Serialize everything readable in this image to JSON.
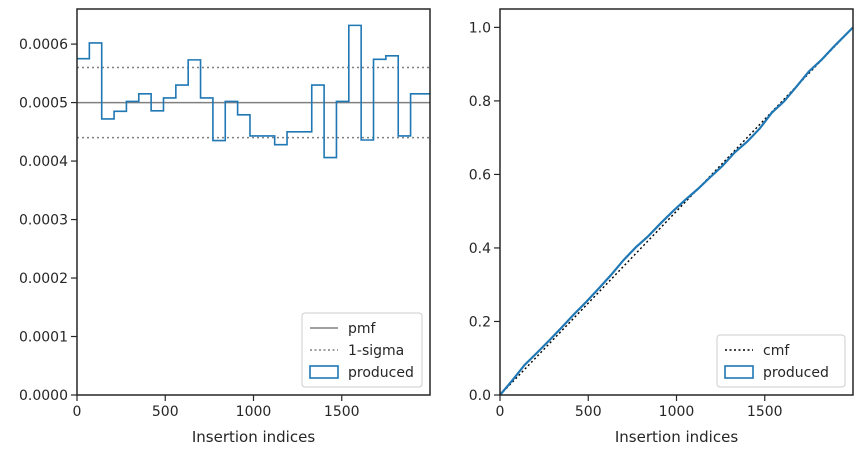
{
  "colors": {
    "produced": "#1f77b4",
    "reference": "#808080",
    "cmf": "#000000",
    "axes": "#262626"
  },
  "chart_data": [
    {
      "type": "step",
      "xlabel": "Insertion indices",
      "ylabel": "",
      "xlim": [
        0,
        2000
      ],
      "ylim": [
        0,
        0.00066
      ],
      "xticks": [
        0,
        500,
        1000,
        1500
      ],
      "xtick_labels": [
        "0",
        "500",
        "1000",
        "1500"
      ],
      "yticks": [
        0,
        0.0001,
        0.0002,
        0.0003,
        0.0004,
        0.0005,
        0.0006
      ],
      "ytick_labels": [
        "0.0000",
        "0.0001",
        "0.0002",
        "0.0003",
        "0.0004",
        "0.0005",
        "0.0006"
      ],
      "pmf": 0.0005,
      "sigma_band": [
        0.00044,
        0.00056
      ],
      "bin_edges": [
        0,
        70,
        140,
        210,
        280,
        350,
        420,
        490,
        560,
        630,
        700,
        770,
        840,
        910,
        980,
        1050,
        1120,
        1190,
        1260,
        1330,
        1400,
        1470,
        1540,
        1610,
        1680,
        1750,
        1820,
        1890,
        2000
      ],
      "produced": [
        0.000575,
        0.000602,
        0.000472,
        0.000485,
        0.000502,
        0.000515,
        0.000486,
        0.000508,
        0.00053,
        0.000573,
        0.000508,
        0.000435,
        0.000502,
        0.000479,
        0.000443,
        0.000443,
        0.000428,
        0.00045,
        0.00045,
        0.00053,
        0.000406,
        0.000502,
        0.000632,
        0.000436,
        0.000574,
        0.00058,
        0.000443,
        0.000515
      ],
      "legend": {
        "location": "lower right",
        "entries": [
          {
            "label": "pmf",
            "style": "solid-line"
          },
          {
            "label": "1-sigma",
            "style": "dotted-line"
          },
          {
            "label": "produced",
            "style": "box"
          }
        ]
      }
    },
    {
      "type": "line",
      "xlabel": "Insertion indices",
      "ylabel": "",
      "xlim": [
        0,
        2000
      ],
      "ylim": [
        0,
        1.05
      ],
      "xticks": [
        0,
        500,
        1000,
        1500
      ],
      "xtick_labels": [
        "0",
        "500",
        "1000",
        "1500"
      ],
      "yticks": [
        0,
        0.2,
        0.4,
        0.6,
        0.8,
        1.0
      ],
      "ytick_labels": [
        "0.0",
        "0.2",
        "0.4",
        "0.6",
        "0.8",
        "1.0"
      ],
      "cmf": {
        "x": [
          0,
          2000
        ],
        "y": [
          0,
          1.0
        ]
      },
      "produced": {
        "x": [
          0,
          70,
          140,
          210,
          280,
          350,
          420,
          490,
          560,
          630,
          700,
          770,
          840,
          910,
          980,
          1050,
          1120,
          1190,
          1260,
          1330,
          1400,
          1470,
          1540,
          1610,
          1680,
          1750,
          1820,
          1890,
          2000
        ],
        "y": [
          0,
          0.04,
          0.082,
          0.115,
          0.149,
          0.184,
          0.22,
          0.254,
          0.29,
          0.327,
          0.367,
          0.402,
          0.432,
          0.467,
          0.5,
          0.531,
          0.56,
          0.592,
          0.623,
          0.66,
          0.689,
          0.724,
          0.768,
          0.799,
          0.839,
          0.88,
          0.911,
          0.947,
          1.0
        ]
      },
      "legend": {
        "location": "lower right",
        "entries": [
          {
            "label": "cmf",
            "style": "dotted-line"
          },
          {
            "label": "produced",
            "style": "box"
          }
        ]
      }
    }
  ]
}
